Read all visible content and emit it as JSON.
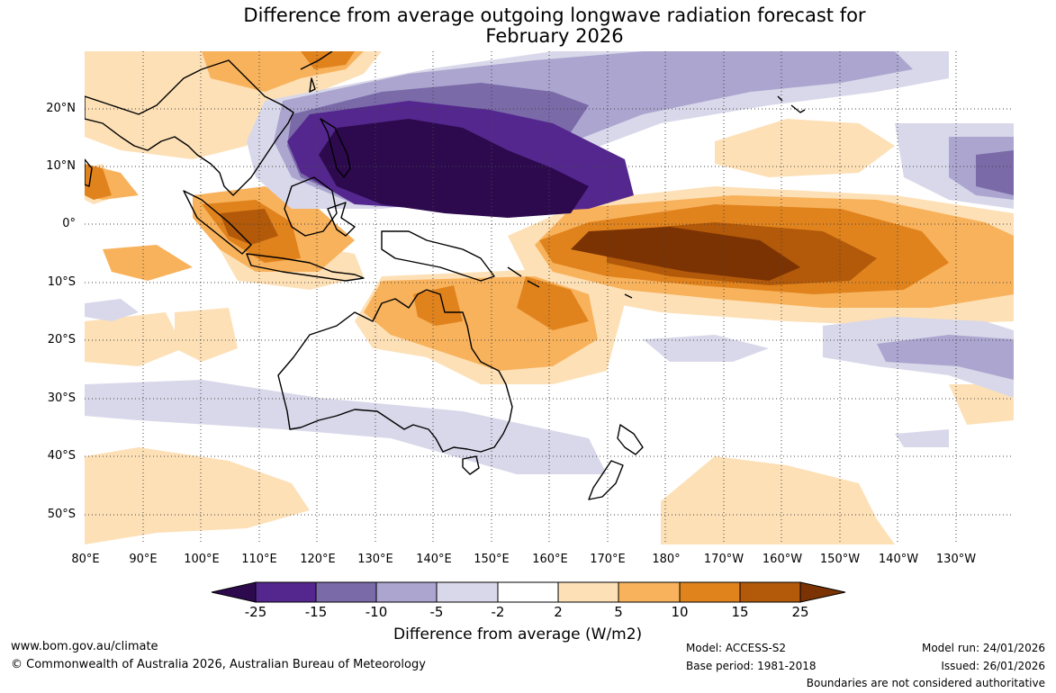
{
  "title": {
    "line1": "Difference from average outgoing longwave radiation forecast for",
    "line2": "February 2026"
  },
  "map": {
    "lat_labels": [
      "20°N",
      "10°N",
      "0°",
      "10°S",
      "20°S",
      "30°S",
      "40°S",
      "50°S"
    ],
    "lon_labels": [
      "80°E",
      "90°E",
      "100°E",
      "110°E",
      "120°E",
      "130°E",
      "140°E",
      "150°E",
      "160°E",
      "170°E",
      "180°",
      "170°W",
      "160°W",
      "150°W",
      "140°W",
      "130°W"
    ],
    "anomaly_regions": [
      {
        "name": "Maritime Continent / western Pacific suppressed-negative core",
        "category": "< -25"
      },
      {
        "name": "Central equatorial Pacific positive core",
        "category": "15 to 25"
      },
      {
        "name": "Northern Australia",
        "category": "5 to 15"
      },
      {
        "name": "Southern Indian Ocean band",
        "category": "-5 to -2"
      }
    ]
  },
  "legend": {
    "ticks": [
      "-25",
      "-15",
      "-10",
      "-5",
      "-2",
      "2",
      "5",
      "10",
      "15",
      "25"
    ],
    "colors": [
      "#2d0a4d",
      "#54278f",
      "#7a6aa8",
      "#aba5cf",
      "#d8d8ea",
      "#ffffff",
      "#fde0b6",
      "#f8b25c",
      "#e0831d",
      "#b2590a",
      "#7b3304"
    ],
    "label": "Difference from average (W/m2)"
  },
  "footer": {
    "website": "www.bom.gov.au/climate",
    "copyright": "© Commonwealth of Australia 2026, Australian Bureau of Meteorology",
    "model": "Model: ACCESS-S2",
    "base_period": "Base period: 1981-2018",
    "model_run": "Model run: 24/01/2026",
    "issued": "Issued: 26/01/2026",
    "disclaimer": "Boundaries are not considered authoritative"
  }
}
